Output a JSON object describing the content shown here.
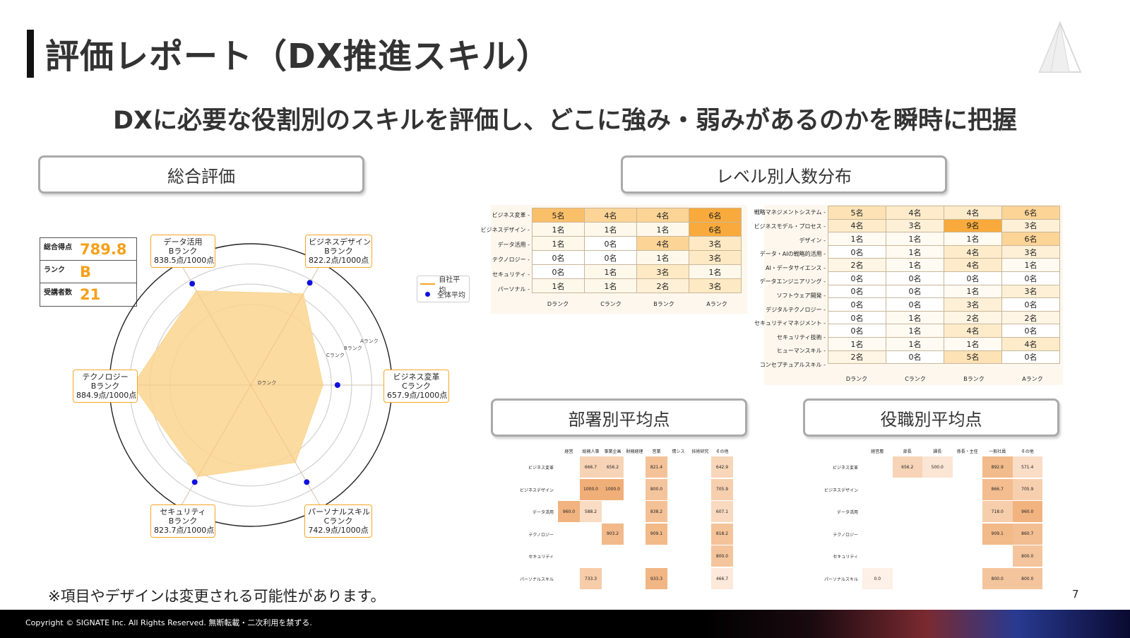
{
  "header": {
    "title": "評価レポート（DX推進スキル）",
    "subtitle": "DXに必要な役割別のスキルを評価し、どこに強み・弱みがあるのかを瞬時に把握"
  },
  "sections": {
    "overall": "総合評価",
    "level_distribution": "レベル別人数分布",
    "dept_average": "部署別平均点",
    "role_average": "役職別平均点"
  },
  "score_box": {
    "rows": [
      {
        "label": "総合得点",
        "value": "789.8"
      },
      {
        "label": "ランク",
        "value": "B"
      },
      {
        "label": "受講者数",
        "value": "21"
      }
    ]
  },
  "radar": {
    "ring_labels": [
      "Aランク",
      "Bランク",
      "Cランク",
      "Dランク"
    ],
    "axes": [
      {
        "name": "データ活用",
        "rank": "Bランク",
        "score": "838.5点/1000点",
        "self": 838.5,
        "overall": 880
      },
      {
        "name": "ビジネスデザイン",
        "rank": "Bランク",
        "score": "822.2点/1000点",
        "self": 822.2,
        "overall": 885
      },
      {
        "name": "ビジネス変革",
        "rank": "Cランク",
        "score": "657.9点/1000点",
        "self": 657.9,
        "overall": 730
      },
      {
        "name": "パーソナルスキル",
        "rank": "Cランク",
        "score": "742.9点/1000点",
        "self": 742.9,
        "overall": 855
      },
      {
        "name": "セキュリティ",
        "rank": "Bランク",
        "score": "823.7点/1000点",
        "self": 823.7,
        "overall": 855
      },
      {
        "name": "テクノロジー",
        "rank": "Bランク",
        "score": "884.9点/1000点",
        "self": 884.9,
        "overall": 930
      }
    ],
    "legend": {
      "self": "自社平均",
      "overall": "全体平均"
    },
    "colors": {
      "fill": "#fbd58f",
      "line": "#f5a623",
      "dot": "#1010e0"
    }
  },
  "level_table_1": {
    "columns": [
      "Dランク",
      "Cランク",
      "Bランク",
      "Aランク"
    ],
    "rows": [
      {
        "label": "ビジネス変革",
        "cells": [
          "5名",
          "4名",
          "4名",
          "6名"
        ]
      },
      {
        "label": "ビジネスデザイン",
        "cells": [
          "1名",
          "1名",
          "1名",
          "6名"
        ]
      },
      {
        "label": "データ活用",
        "cells": [
          "1名",
          "0名",
          "4名",
          "3名"
        ]
      },
      {
        "label": "テクノロジー",
        "cells": [
          "0名",
          "0名",
          "1名",
          "3名"
        ]
      },
      {
        "label": "セキュリティ",
        "cells": [
          "0名",
          "1名",
          "3名",
          "1名"
        ]
      },
      {
        "label": "パーソナル",
        "cells": [
          "1名",
          "1名",
          "2名",
          "3名"
        ]
      }
    ]
  },
  "level_table_2": {
    "columns": [
      "Dランク",
      "Cランク",
      "Bランク",
      "Aランク"
    ],
    "rows": [
      {
        "label": "戦略マネジメントシステム",
        "cells": [
          "5名",
          "4名",
          "4名",
          "6名"
        ]
      },
      {
        "label": "ビジネスモデル・プロセス",
        "cells": [
          "4名",
          "3名",
          "9名",
          "3名"
        ]
      },
      {
        "label": "デザイン",
        "cells": [
          "1名",
          "1名",
          "1名",
          "6名"
        ]
      },
      {
        "label": "データ・AIの戦略的活用",
        "cells": [
          "0名",
          "1名",
          "4名",
          "3名"
        ]
      },
      {
        "label": "AI・データサイエンス",
        "cells": [
          "2名",
          "1名",
          "4名",
          "1名"
        ]
      },
      {
        "label": "データエンジニアリング",
        "cells": [
          "0名",
          "0名",
          "0名",
          "0名"
        ]
      },
      {
        "label": "ソフトウェア開発",
        "cells": [
          "0名",
          "0名",
          "1名",
          "3名"
        ]
      },
      {
        "label": "デジタルテクノロジー",
        "cells": [
          "0名",
          "0名",
          "3名",
          "0名"
        ]
      },
      {
        "label": "セキュリティマネジメント",
        "cells": [
          "0名",
          "1名",
          "2名",
          "2名"
        ]
      },
      {
        "label": "セキュリティ技術",
        "cells": [
          "0名",
          "1名",
          "4名",
          "0名"
        ]
      },
      {
        "label": "ヒューマンスキル",
        "cells": [
          "1名",
          "1名",
          "1名",
          "4名"
        ]
      },
      {
        "label": "コンセプチュアルスキル",
        "cells": [
          "2名",
          "0名",
          "5名",
          "0名"
        ]
      }
    ]
  },
  "dept_table": {
    "columns": [
      "経営",
      "総務人事",
      "事業企画",
      "財務経理",
      "営業",
      "情シス",
      "技術研究",
      "その他"
    ],
    "rows": [
      {
        "label": "ビジネス変革",
        "cells": [
          "",
          "666.7",
          "656.2",
          "",
          "821.4",
          "",
          "",
          "642.9"
        ]
      },
      {
        "label": "ビジネスデザイン",
        "cells": [
          "",
          "1000.0",
          "1000.0",
          "",
          "800.0",
          "",
          "",
          "705.9"
        ]
      },
      {
        "label": "データ活用",
        "cells": [
          "960.0",
          "588.2",
          "",
          "",
          "838.2",
          "",
          "",
          "607.1"
        ]
      },
      {
        "label": "テクノロジー",
        "cells": [
          "",
          "",
          "903.2",
          "",
          "909.1",
          "",
          "",
          "818.2"
        ]
      },
      {
        "label": "セキュリティ",
        "cells": [
          "",
          "",
          "",
          "",
          "",
          "",
          "",
          "800.0"
        ]
      },
      {
        "label": "パーソナルスキル",
        "cells": [
          "",
          "733.3",
          "",
          "",
          "933.3",
          "",
          "",
          "466.7"
        ]
      }
    ]
  },
  "role_table": {
    "columns": [
      "経営層",
      "部長",
      "課長",
      "係長・主任",
      "一般社員",
      "その他"
    ],
    "rows": [
      {
        "label": "ビジネス変革",
        "cells": [
          "",
          "656.2",
          "500.0",
          "",
          "892.9",
          "571.4"
        ]
      },
      {
        "label": "ビジネスデザイン",
        "cells": [
          "",
          "",
          "",
          "",
          "866.7",
          "705.9"
        ]
      },
      {
        "label": "データ活用",
        "cells": [
          "",
          "",
          "",
          "",
          "718.0",
          "960.0"
        ]
      },
      {
        "label": "テクノロジー",
        "cells": [
          "",
          "",
          "",
          "",
          "909.1",
          "860.7"
        ]
      },
      {
        "label": "セキュリティ",
        "cells": [
          "",
          "",
          "",
          "",
          "",
          "800.0"
        ]
      },
      {
        "label": "パーソナルスキル",
        "cells": [
          "0.0",
          "",
          "",
          "",
          "800.0",
          "800.0"
        ]
      }
    ]
  },
  "footer": {
    "note": "※項目やデザインは変更される可能性があります。",
    "page": "7",
    "copyright": "Copyright © SIGNATE Inc. All Rights Reserved. 無断転載・二次利用を禁ずる."
  }
}
